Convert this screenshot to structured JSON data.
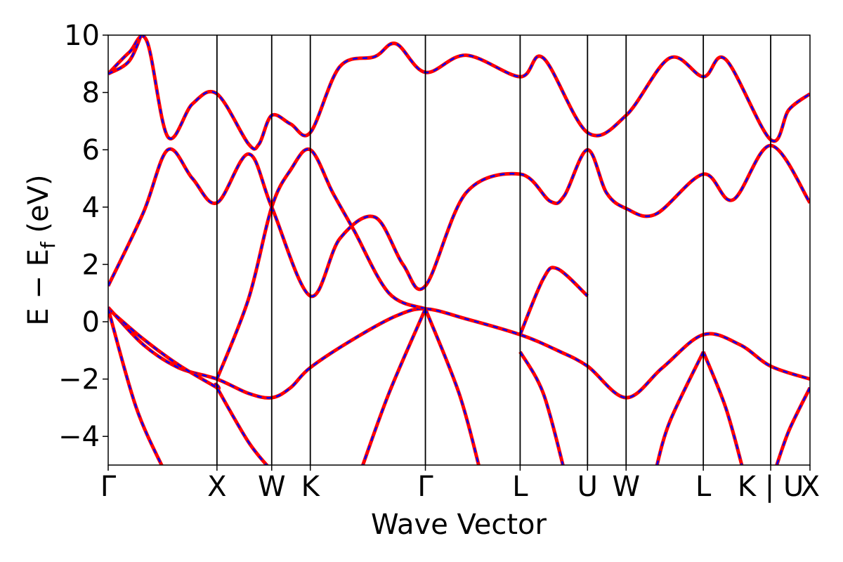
{
  "chart_data": {
    "type": "line",
    "title": "",
    "xlabel": "Wave Vector",
    "ylabel": "E − E_f (eV)",
    "ylabel_parts": {
      "main": "E − E",
      "sub": "f",
      "unit": " (eV)"
    },
    "ylim": [
      -5,
      10
    ],
    "xlim": [
      0,
      1
    ],
    "y_ticks": [
      -4,
      -2,
      0,
      2,
      4,
      6,
      8,
      10
    ],
    "y_tick_labels": [
      "−4",
      "−2",
      "0",
      "2",
      "4",
      "6",
      "8",
      "10"
    ],
    "high_symmetry_points": [
      {
        "label": "Γ",
        "x": 0.0
      },
      {
        "label": "X",
        "x": 0.155
      },
      {
        "label": "W",
        "x": 0.233
      },
      {
        "label": "K",
        "x": 0.288
      },
      {
        "label": "Γ",
        "x": 0.452
      },
      {
        "label": "L",
        "x": 0.587
      },
      {
        "label": "U",
        "x": 0.683
      },
      {
        "label": "W",
        "x": 0.738
      },
      {
        "label": "L",
        "x": 0.848
      },
      {
        "label": "K | U",
        "x": 0.944
      },
      {
        "label": "X",
        "x": 1.0
      }
    ],
    "grid": false,
    "legend": "none",
    "colors": {
      "series_a": "#ff0000",
      "series_b": "#0000ff"
    },
    "bands": [
      {
        "points": [
          [
            0.0,
            0.5
          ],
          [
            0.05,
            -0.8
          ],
          [
            0.1,
            -1.6
          ],
          [
            0.155,
            -2.0
          ],
          [
            0.2,
            -2.5
          ],
          [
            0.233,
            -2.65
          ],
          [
            0.26,
            -2.3
          ],
          [
            0.288,
            -1.6
          ],
          [
            0.35,
            -0.6
          ],
          [
            0.41,
            0.2
          ],
          [
            0.452,
            0.45
          ],
          [
            0.51,
            0.1
          ],
          [
            0.587,
            -0.45
          ],
          [
            0.64,
            -1.0
          ],
          [
            0.683,
            -1.55
          ],
          [
            0.738,
            -2.65
          ],
          [
            0.79,
            -1.6
          ],
          [
            0.848,
            -0.45
          ],
          [
            0.9,
            -0.8
          ],
          [
            0.944,
            -1.55
          ],
          [
            1.0,
            -2.0
          ]
        ]
      },
      {
        "points": [
          [
            0.0,
            0.45
          ],
          [
            0.05,
            -0.6
          ],
          [
            0.1,
            -1.5
          ],
          [
            0.155,
            -2.3
          ],
          [
            0.155,
            -2.3
          ],
          [
            0.2,
            -4.2
          ],
          [
            0.233,
            -5.2
          ]
        ]
      },
      {
        "points": [
          [
            0.0,
            0.45
          ],
          [
            0.04,
            -3.0
          ],
          [
            0.08,
            -5.2
          ]
        ]
      },
      {
        "points": [
          [
            0.0,
            1.25
          ],
          [
            0.05,
            3.8
          ],
          [
            0.085,
            6.0
          ],
          [
            0.12,
            5.0
          ],
          [
            0.155,
            4.15
          ],
          [
            0.2,
            5.85
          ],
          [
            0.233,
            4.0
          ],
          [
            0.288,
            0.9
          ],
          [
            0.33,
            2.9
          ],
          [
            0.38,
            3.65
          ],
          [
            0.42,
            2.0
          ],
          [
            0.452,
            1.25
          ],
          [
            0.51,
            4.5
          ],
          [
            0.587,
            5.15
          ],
          [
            0.63,
            4.2
          ],
          [
            0.65,
            4.4
          ],
          [
            0.683,
            6.0
          ],
          [
            0.71,
            4.5
          ],
          [
            0.738,
            3.95
          ],
          [
            0.78,
            3.75
          ],
          [
            0.848,
            5.15
          ],
          [
            0.89,
            4.25
          ],
          [
            0.944,
            6.15
          ],
          [
            1.0,
            4.15
          ]
        ]
      },
      {
        "points": [
          [
            0.155,
            -2.0
          ],
          [
            0.2,
            0.8
          ],
          [
            0.233,
            4.0
          ],
          [
            0.26,
            5.3
          ],
          [
            0.288,
            6.0
          ],
          [
            0.32,
            4.5
          ],
          [
            0.35,
            3.2
          ],
          [
            0.4,
            1.0
          ],
          [
            0.452,
            0.45
          ]
        ]
      },
      {
        "points": [
          [
            0.0,
            8.65
          ],
          [
            0.03,
            9.4
          ],
          [
            0.055,
            9.8
          ],
          [
            0.085,
            6.45
          ],
          [
            0.12,
            7.6
          ],
          [
            0.155,
            7.95
          ],
          [
            0.2,
            6.2
          ],
          [
            0.215,
            6.2
          ],
          [
            0.233,
            7.2
          ],
          [
            0.26,
            6.9
          ],
          [
            0.288,
            6.6
          ],
          [
            0.33,
            8.9
          ],
          [
            0.38,
            9.25
          ],
          [
            0.41,
            9.7
          ],
          [
            0.452,
            8.7
          ],
          [
            0.51,
            9.3
          ],
          [
            0.587,
            8.55
          ],
          [
            0.62,
            9.2
          ],
          [
            0.683,
            6.6
          ],
          [
            0.738,
            7.2
          ],
          [
            0.8,
            9.2
          ],
          [
            0.848,
            8.55
          ],
          [
            0.88,
            9.15
          ],
          [
            0.944,
            6.35
          ],
          [
            0.97,
            7.4
          ],
          [
            1.0,
            7.95
          ]
        ]
      },
      {
        "points": [
          [
            0.0,
            8.65
          ],
          [
            0.03,
            9.1
          ],
          [
            0.05,
            10.2
          ]
        ]
      },
      {
        "points": [
          [
            0.587,
            -0.45
          ],
          [
            0.62,
            1.5
          ],
          [
            0.64,
            1.85
          ],
          [
            0.683,
            0.9
          ]
        ]
      },
      {
        "points": [
          [
            0.452,
            0.45
          ],
          [
            0.5,
            -2.5
          ],
          [
            0.53,
            -5.2
          ]
        ]
      },
      {
        "points": [
          [
            0.452,
            0.45
          ],
          [
            0.4,
            -2.5
          ],
          [
            0.36,
            -5.2
          ]
        ]
      },
      {
        "points": [
          [
            0.848,
            -1.05
          ],
          [
            0.88,
            -3.0
          ],
          [
            0.905,
            -5.2
          ]
        ]
      },
      {
        "points": [
          [
            0.848,
            -1.05
          ],
          [
            0.8,
            -3.5
          ],
          [
            0.78,
            -5.2
          ]
        ]
      },
      {
        "points": [
          [
            1.0,
            -2.3
          ],
          [
            0.97,
            -3.8
          ],
          [
            0.95,
            -5.2
          ]
        ]
      },
      {
        "points": [
          [
            0.587,
            -1.05
          ],
          [
            0.62,
            -2.5
          ],
          [
            0.65,
            -5.2
          ]
        ]
      }
    ]
  }
}
